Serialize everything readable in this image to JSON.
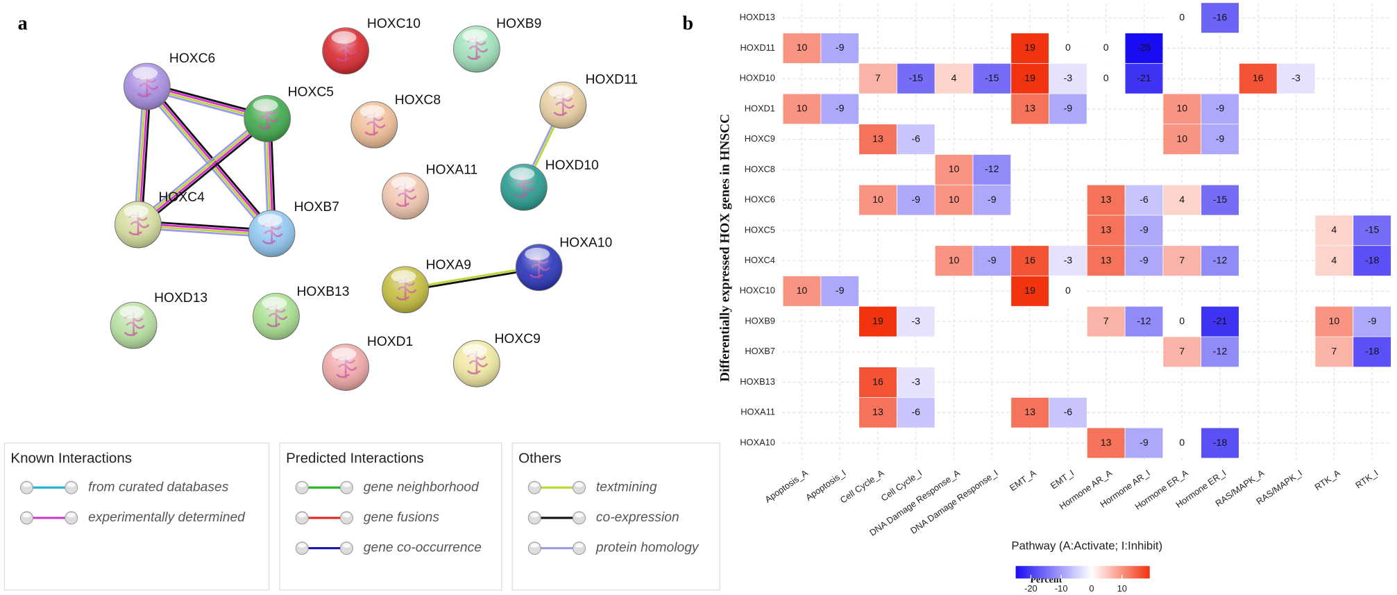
{
  "network": {
    "panel_label": "a",
    "nodes": [
      {
        "label": "HOXC6"
      },
      {
        "label": "HOXC5"
      },
      {
        "label": "HOXC4"
      },
      {
        "label": "HOXB7"
      },
      {
        "label": "HOXC10"
      },
      {
        "label": "HOXB9"
      },
      {
        "label": "HOXC8"
      },
      {
        "label": "HOXD11"
      },
      {
        "label": "HOXA11"
      },
      {
        "label": "HOXD10"
      },
      {
        "label": "HOXA9"
      },
      {
        "label": "HOXA10"
      },
      {
        "label": "HOXD13"
      },
      {
        "label": "HOXB13"
      },
      {
        "label": "HOXD1"
      },
      {
        "label": "HOXC9"
      }
    ],
    "legend": [
      {
        "title": "Known Interactions",
        "items": [
          "from curated databases",
          "experimentally determined"
        ]
      },
      {
        "title": "Predicted Interactions",
        "items": [
          "gene neighborhood",
          "gene fusions",
          "gene co-occurrence"
        ]
      },
      {
        "title": "Others",
        "items": [
          "textmining",
          "co-expression",
          "protein homology"
        ]
      }
    ]
  },
  "chart_data": {
    "type": "heatmap",
    "panel_label": "b",
    "x_label": "Pathway (A:Activate; I:Inhibit)",
    "y_label": "Differentially expressed HOX genes in HNSCC",
    "columns": [
      "Apoptosis_A",
      "Apoptosis_I",
      "Cell Cycle_A",
      "Cell Cycle_I",
      "DNA Damage Response_A",
      "DNA Damage Response_I",
      "EMT_A",
      "EMT_I",
      "Hormone AR_A",
      "Hormone AR_I",
      "Hormone ER_A",
      "Hormone ER_I",
      "RAS/MAPK_A",
      "RAS/MAPK_I",
      "RTK_A",
      "RTK_I"
    ],
    "rows": [
      "HOXD13",
      "HOXD11",
      "HOXD10",
      "HOXD1",
      "HOXC9",
      "HOXC8",
      "HOXC6",
      "HOXC5",
      "HOXC4",
      "HOXC10",
      "HOXB9",
      "HOXB7",
      "HOXB13",
      "HOXA11",
      "HOXA10"
    ],
    "values": [
      [
        null,
        null,
        null,
        null,
        null,
        null,
        null,
        null,
        null,
        null,
        0,
        -16,
        null,
        null,
        null,
        null
      ],
      [
        10,
        -9,
        null,
        null,
        null,
        null,
        19,
        0,
        0,
        -25,
        null,
        null,
        null,
        null,
        null,
        null
      ],
      [
        null,
        null,
        7,
        -15,
        4,
        -15,
        19,
        -3,
        0,
        -21,
        null,
        null,
        16,
        -3,
        null,
        null
      ],
      [
        10,
        -9,
        null,
        null,
        null,
        null,
        13,
        -9,
        null,
        null,
        10,
        -9,
        null,
        null,
        null,
        null
      ],
      [
        null,
        null,
        13,
        -6,
        null,
        null,
        null,
        null,
        null,
        null,
        10,
        -9,
        null,
        null,
        null,
        null
      ],
      [
        null,
        null,
        null,
        null,
        10,
        -12,
        null,
        null,
        null,
        null,
        null,
        null,
        null,
        null,
        null,
        null
      ],
      [
        null,
        null,
        10,
        -9,
        10,
        -9,
        null,
        null,
        13,
        -6,
        4,
        -15,
        null,
        null,
        null,
        null
      ],
      [
        null,
        null,
        null,
        null,
        null,
        null,
        null,
        null,
        13,
        -9,
        null,
        null,
        null,
        null,
        4,
        -15
      ],
      [
        null,
        null,
        null,
        null,
        10,
        -9,
        16,
        -3,
        13,
        -9,
        7,
        -12,
        null,
        null,
        4,
        -18
      ],
      [
        10,
        -9,
        null,
        null,
        null,
        null,
        19,
        0,
        null,
        null,
        null,
        null,
        null,
        null,
        null,
        null
      ],
      [
        null,
        null,
        19,
        -3,
        null,
        null,
        null,
        null,
        7,
        -12,
        0,
        -21,
        null,
        null,
        10,
        -9
      ],
      [
        null,
        null,
        null,
        null,
        null,
        null,
        null,
        null,
        null,
        null,
        7,
        -12,
        null,
        null,
        7,
        -18
      ],
      [
        null,
        null,
        16,
        -3,
        null,
        null,
        null,
        null,
        null,
        null,
        null,
        null,
        null,
        null,
        null,
        null
      ],
      [
        null,
        null,
        13,
        -6,
        null,
        null,
        13,
        -6,
        null,
        null,
        null,
        null,
        null,
        null,
        null,
        null
      ],
      [
        null,
        null,
        null,
        null,
        null,
        null,
        null,
        null,
        13,
        -9,
        0,
        -18,
        null,
        null,
        null,
        null
      ]
    ],
    "colorbar": {
      "title": "Percent",
      "lim": [
        -25,
        19
      ],
      "ticks": [
        -20,
        -10,
        0,
        10
      ],
      "colors": [
        "#1a0cf2",
        "#ffffff",
        "#f2330f"
      ]
    },
    "grid": true
  }
}
